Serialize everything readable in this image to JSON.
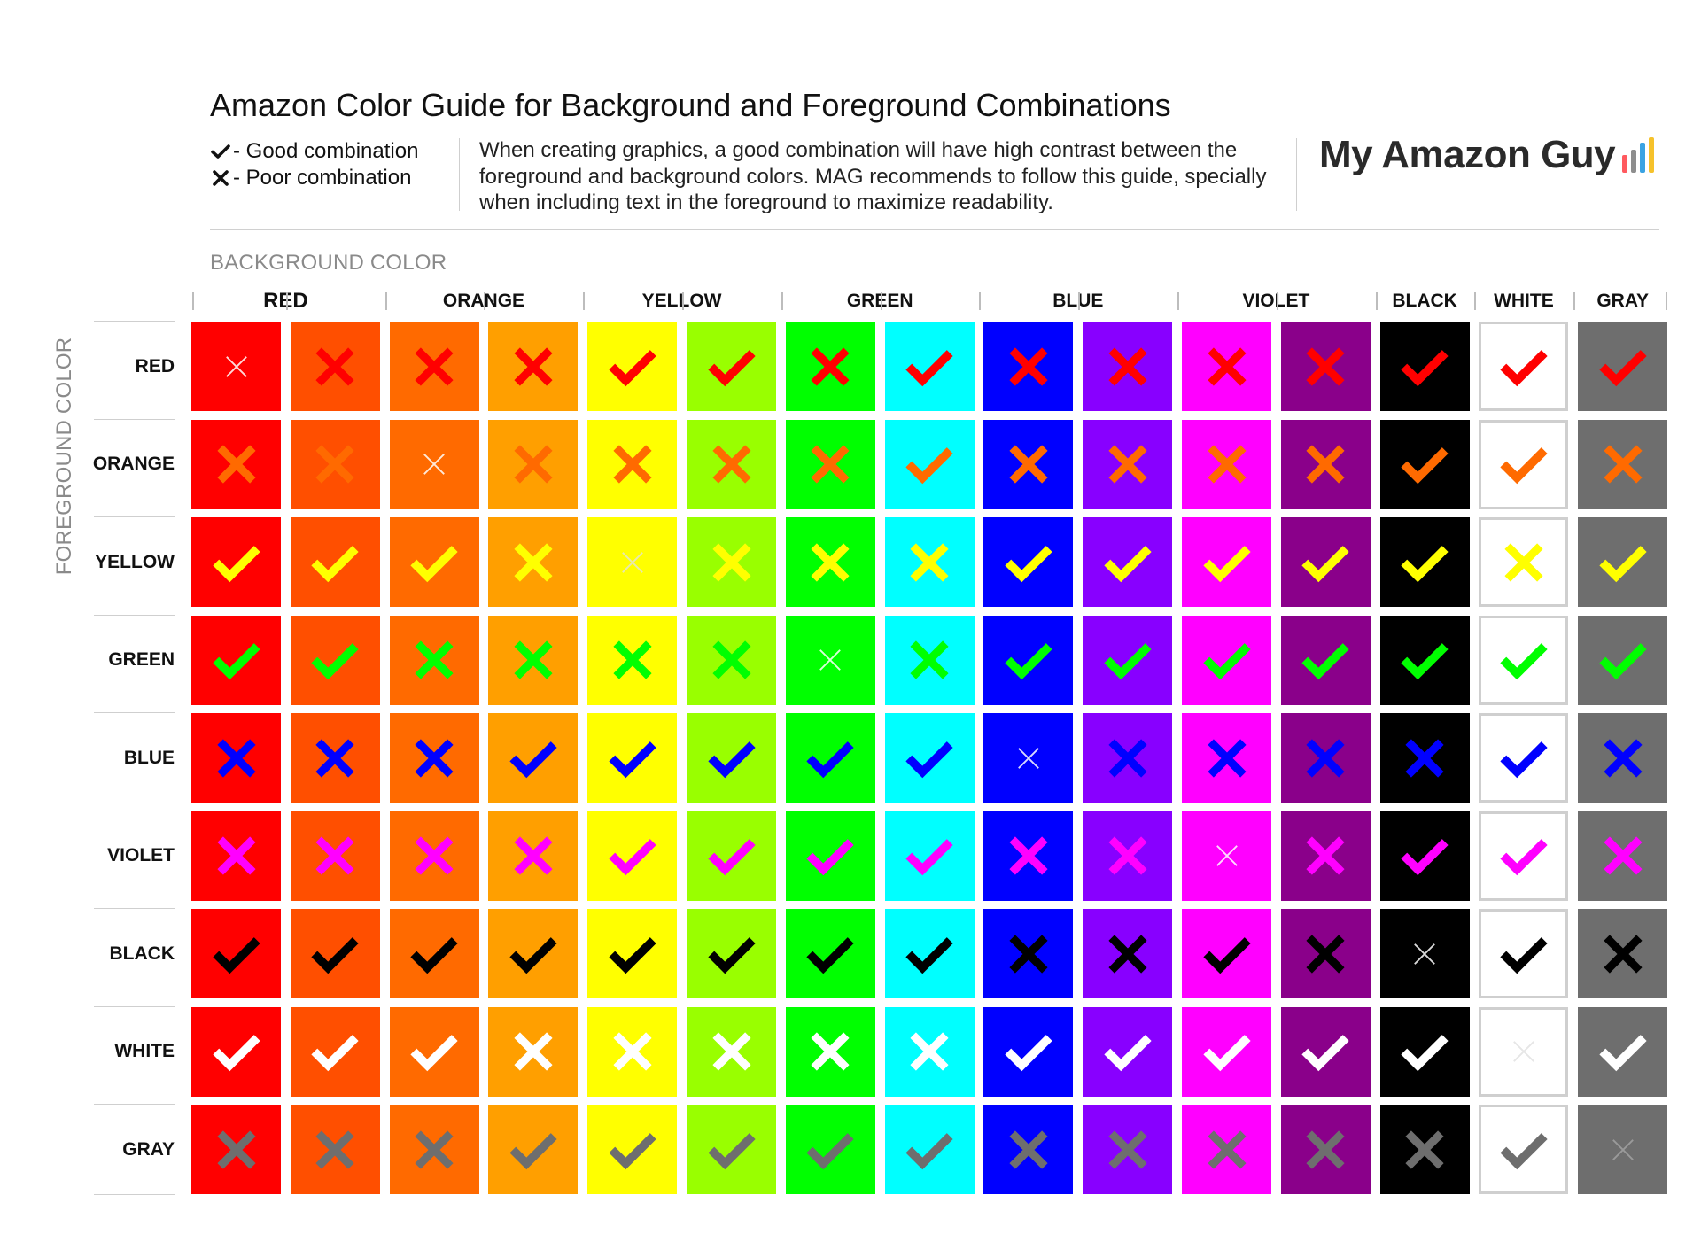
{
  "title": "Amazon Color Guide for Background and Foreground Combinations",
  "legend": {
    "good": "- Good combination",
    "poor": "- Poor combination"
  },
  "description": "When creating graphics, a good combination will have high contrast between the foreground and background colors. MAG recommends to follow this guide, specially when including text in the foreground to maximize readability.",
  "logo": {
    "text": "My Amazon Guy",
    "bar_colors": [
      "#ff5a5f",
      "#8e8e8e",
      "#3aa3e3",
      "#f6c22b"
    ]
  },
  "background_axis_title": "BACKGROUND COLOR",
  "foreground_axis_title": "FOREGROUND COLOR",
  "column_headers": [
    "RED",
    "ORANGE",
    "YELLOW",
    "GREEN",
    "BLUE",
    "VIOLET",
    "BLACK",
    "WHITE",
    "GRAY"
  ],
  "row_labels": [
    "RED",
    "ORANGE",
    "YELLOW",
    "GREEN",
    "BLUE",
    "VIOLET",
    "BLACK",
    "WHITE",
    "GRAY"
  ],
  "background_colors": [
    "#ff0000",
    "#ff4f00",
    "#ff6a00",
    "#ff9f00",
    "#ffff00",
    "#99ff00",
    "#00ff00",
    "#00ffff",
    "#0000ff",
    "#8800ff",
    "#ff00ff",
    "#8a008a",
    "#000000",
    "#ffffff",
    "#6e6e6e"
  ],
  "foreground_colors": [
    "#ff0000",
    "#ff6a00",
    "#ffff00",
    "#00ff00",
    "#0000ff",
    "#ff00ff",
    "#000000",
    "#ffffff",
    "#6e6e6e"
  ],
  "grid": [
    "-xxxvvxvxxxxvvv",
    "xx-xxxxvxxxxvvx",
    "vvvx-xxxvvvvvxv",
    "vvxxxx-xvvvvvvv",
    "xxxvvvvv-xxxxvx",
    "xxxxvvvvxx-xvvx",
    "vvvvvvvvxxvx-vx",
    "vvvxxxxxvvvvv-v",
    "xxxvvvvvxxxxxv-"
  ],
  "grid_legend": {
    "v": "good",
    "x": "poor",
    "-": "same color"
  }
}
